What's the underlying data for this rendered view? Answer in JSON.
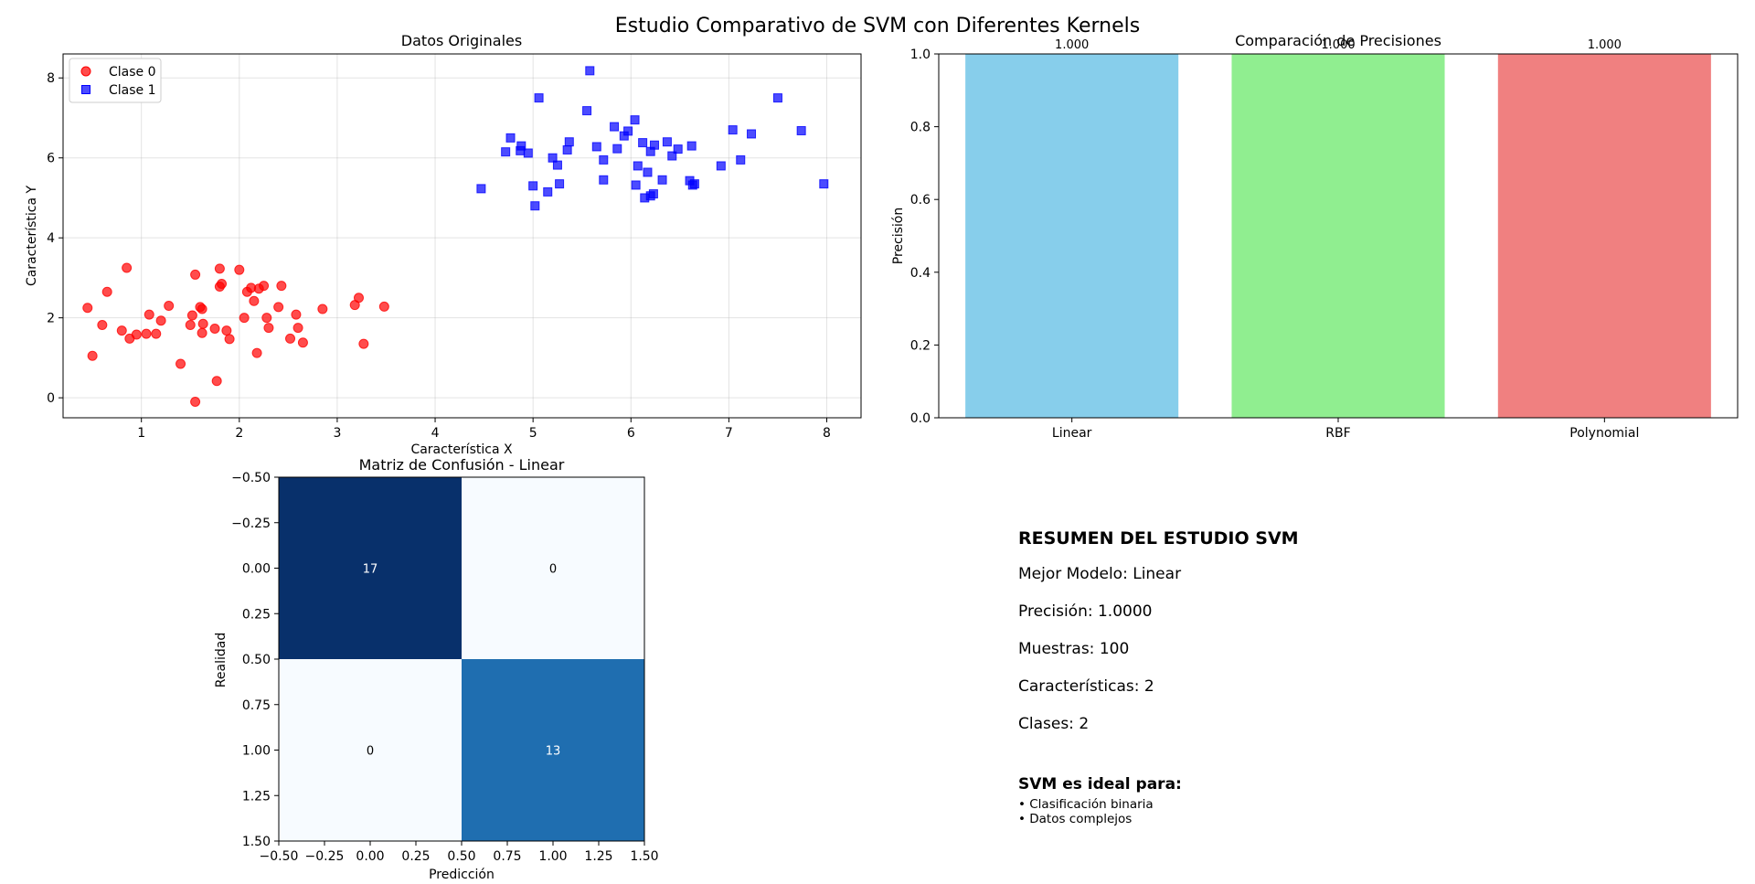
{
  "figure": {
    "title": "Estudio Comparativo de SVM con Diferentes Kernels"
  },
  "chart_data": [
    {
      "type": "scatter",
      "title": "Datos Originales",
      "xlabel": "Característica X",
      "ylabel": "Característica Y",
      "xlim": [
        0.2,
        8.35
      ],
      "ylim": [
        -0.5,
        8.6
      ],
      "xticks": [
        1,
        2,
        3,
        4,
        5,
        6,
        7,
        8
      ],
      "yticks": [
        0,
        2,
        4,
        6,
        8
      ],
      "grid": true,
      "legend_position": "upper-left",
      "series": [
        {
          "name": "Clase 0",
          "marker": "circle",
          "color": "#ff0000",
          "points": [
            [
              0.45,
              2.25
            ],
            [
              0.5,
              1.05
            ],
            [
              0.6,
              1.82
            ],
            [
              0.65,
              2.65
            ],
            [
              0.8,
              1.68
            ],
            [
              0.85,
              3.25
            ],
            [
              0.88,
              1.48
            ],
            [
              0.95,
              1.58
            ],
            [
              1.05,
              1.6
            ],
            [
              1.08,
              2.08
            ],
            [
              1.15,
              1.6
            ],
            [
              1.2,
              1.93
            ],
            [
              1.28,
              2.3
            ],
            [
              1.4,
              0.85
            ],
            [
              1.5,
              1.82
            ],
            [
              1.52,
              2.06
            ],
            [
              1.55,
              3.08
            ],
            [
              1.55,
              -0.1
            ],
            [
              1.6,
              2.27
            ],
            [
              1.62,
              2.22
            ],
            [
              1.62,
              1.62
            ],
            [
              1.63,
              1.85
            ],
            [
              1.75,
              1.73
            ],
            [
              1.77,
              0.42
            ],
            [
              1.8,
              3.23
            ],
            [
              1.8,
              2.78
            ],
            [
              1.82,
              2.85
            ],
            [
              1.87,
              1.68
            ],
            [
              1.9,
              1.47
            ],
            [
              2.0,
              3.2
            ],
            [
              2.05,
              2.0
            ],
            [
              2.08,
              2.65
            ],
            [
              2.12,
              2.75
            ],
            [
              2.15,
              2.42
            ],
            [
              2.18,
              1.12
            ],
            [
              2.2,
              2.73
            ],
            [
              2.25,
              2.8
            ],
            [
              2.28,
              2.0
            ],
            [
              2.3,
              1.75
            ],
            [
              2.4,
              2.27
            ],
            [
              2.43,
              2.8
            ],
            [
              2.52,
              1.48
            ],
            [
              2.58,
              2.08
            ],
            [
              2.6,
              1.75
            ],
            [
              2.65,
              1.38
            ],
            [
              2.85,
              2.22
            ],
            [
              3.18,
              2.32
            ],
            [
              3.22,
              2.5
            ],
            [
              3.27,
              1.35
            ],
            [
              3.48,
              2.28
            ]
          ]
        },
        {
          "name": "Clase 1",
          "marker": "square",
          "color": "#0000ff",
          "points": [
            [
              4.47,
              5.23
            ],
            [
              4.72,
              6.15
            ],
            [
              4.77,
              6.5
            ],
            [
              4.87,
              6.18
            ],
            [
              4.88,
              6.3
            ],
            [
              4.95,
              6.12
            ],
            [
              5.0,
              5.3
            ],
            [
              5.02,
              4.8
            ],
            [
              5.06,
              7.5
            ],
            [
              5.15,
              5.15
            ],
            [
              5.2,
              6.0
            ],
            [
              5.25,
              5.82
            ],
            [
              5.27,
              5.35
            ],
            [
              5.35,
              6.2
            ],
            [
              5.37,
              6.4
            ],
            [
              5.55,
              7.18
            ],
            [
              5.58,
              8.18
            ],
            [
              5.65,
              6.28
            ],
            [
              5.72,
              5.95
            ],
            [
              5.72,
              5.45
            ],
            [
              5.83,
              6.78
            ],
            [
              5.86,
              6.23
            ],
            [
              5.93,
              6.55
            ],
            [
              5.97,
              6.67
            ],
            [
              6.04,
              6.95
            ],
            [
              6.05,
              5.32
            ],
            [
              6.07,
              5.8
            ],
            [
              6.12,
              6.38
            ],
            [
              6.14,
              5.0
            ],
            [
              6.17,
              5.64
            ],
            [
              6.2,
              6.16
            ],
            [
              6.2,
              5.05
            ],
            [
              6.23,
              5.1
            ],
            [
              6.24,
              6.32
            ],
            [
              6.32,
              5.45
            ],
            [
              6.37,
              6.4
            ],
            [
              6.42,
              6.05
            ],
            [
              6.48,
              6.22
            ],
            [
              6.6,
              5.43
            ],
            [
              6.62,
              6.3
            ],
            [
              6.63,
              5.32
            ],
            [
              6.65,
              5.35
            ],
            [
              6.92,
              5.8
            ],
            [
              7.04,
              6.7
            ],
            [
              7.12,
              5.95
            ],
            [
              7.23,
              6.6
            ],
            [
              7.5,
              7.5
            ],
            [
              7.74,
              6.68
            ],
            [
              7.97,
              5.35
            ]
          ]
        }
      ]
    },
    {
      "type": "bar",
      "title": "Comparación de Precisiones",
      "ylabel": "Precisión",
      "ylim": [
        0,
        1.0
      ],
      "yticks": [
        "0.0",
        "0.2",
        "0.4",
        "0.6",
        "0.8",
        "1.0"
      ],
      "categories": [
        "Linear",
        "RBF",
        "Polynomial"
      ],
      "values": [
        1.0,
        1.0,
        1.0
      ],
      "value_labels": [
        "1.000",
        "1.000",
        "1.000"
      ],
      "colors": [
        "#87ceeb",
        "#90ee90",
        "#f08080"
      ]
    },
    {
      "type": "heatmap",
      "title": "Matriz de Confusión - Linear",
      "xlabel": "Predicción",
      "ylabel": "Realidad",
      "xlim": [
        -0.5,
        1.5
      ],
      "ylim": [
        1.5,
        -0.5
      ],
      "ticks": [
        "−0.50",
        "−0.25",
        "0.00",
        "0.25",
        "0.50",
        "0.75",
        "1.00",
        "1.25",
        "1.50"
      ],
      "colormap": "Blues",
      "matrix": [
        [
          17,
          0
        ],
        [
          0,
          13
        ]
      ],
      "cell_colors": [
        [
          "#08306b",
          "#f7fbff"
        ],
        [
          "#f7fbff",
          "#1f6eb0"
        ]
      ],
      "text_colors": [
        [
          "#ffffff",
          "#000000"
        ],
        [
          "#000000",
          "#ffffff"
        ]
      ]
    }
  ],
  "summary": {
    "heading": "RESUMEN DEL ESTUDIO SVM",
    "best_model": "Mejor Modelo: Linear",
    "precision": "Precisión: 1.0000",
    "samples": "Muestras: 100",
    "features": "Características: 2",
    "classes": "Clases: 2",
    "ideal_heading": "SVM es ideal para:",
    "bullets": [
      "• Clasificación binaria",
      "• Datos complejos"
    ]
  }
}
